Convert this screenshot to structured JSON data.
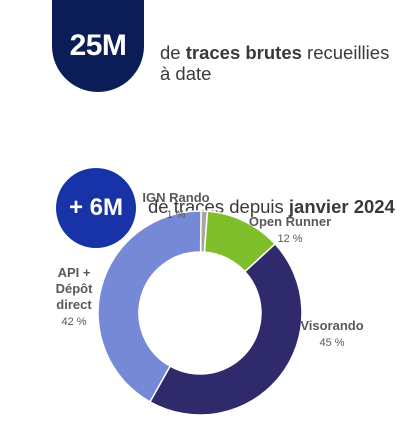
{
  "stats": [
    {
      "badge": "25M",
      "text_parts": [
        {
          "t": "de ",
          "bold": false
        },
        {
          "t": "traces brutes",
          "bold": true
        },
        {
          "t": " recueillies à date",
          "bold": false
        }
      ],
      "color": "#0b1d57"
    },
    {
      "badge": "+ 6M",
      "text_parts": [
        {
          "t": "de traces depuis ",
          "bold": false
        },
        {
          "t": "janvier 2024",
          "bold": true
        }
      ],
      "color": "#1833a8"
    }
  ],
  "chart_data": {
    "type": "pie",
    "donut": true,
    "slices": [
      {
        "label": "IGN Rando",
        "value": 1,
        "value_label": "1 %",
        "color": "#a6a6a6"
      },
      {
        "label": "Open Runner",
        "value": 12,
        "value_label": "12 %",
        "color": "#80bf2b"
      },
      {
        "label": "Visorando",
        "value": 45,
        "value_label": "45 %",
        "color": "#2e2a6b"
      },
      {
        "label": "API + Dépôt direct",
        "label_lines": [
          "API +",
          "Dépôt",
          "direct"
        ],
        "value": 42,
        "value_label": "42 %",
        "color": "#7689d6"
      }
    ]
  }
}
